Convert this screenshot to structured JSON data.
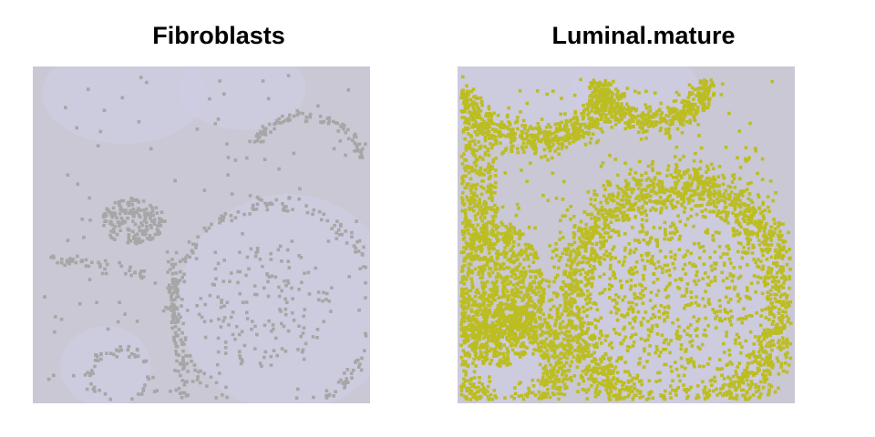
{
  "chart_data": [
    {
      "type": "scatter",
      "title": "Fibroblasts",
      "xlabel": "",
      "ylabel": "",
      "grid": false,
      "legend": "none",
      "background_color": "#c9c8d4",
      "tissue_color": "#d0cee6",
      "point_color": "#a6a6a6",
      "density_description": "sparse; dense band along left-upper duct border, scattered ring around central duct, lower-left band, small lower-left ring",
      "structures": [
        {
          "kind": "arc",
          "cx": 300,
          "cy": 100,
          "rx": 60,
          "ry": 45,
          "start": 200,
          "end": 360,
          "thickness": 10,
          "n": 90
        },
        {
          "kind": "blob",
          "cx": 110,
          "cy": 170,
          "rx": 35,
          "ry": 25,
          "n": 160
        },
        {
          "kind": "ring",
          "cx": 265,
          "cy": 265,
          "rx": 110,
          "ry": 115,
          "thickness": 14,
          "n": 260
        },
        {
          "kind": "fill",
          "cx": 255,
          "cy": 265,
          "rx": 75,
          "ry": 70,
          "n": 140
        },
        {
          "kind": "band",
          "x0": 15,
          "y0": 405,
          "x1": 360,
          "y1": 410,
          "thickness": 8,
          "n": 180
        },
        {
          "kind": "band",
          "x0": 150,
          "y0": 200,
          "x1": 170,
          "y1": 400,
          "thickness": 10,
          "n": 110
        },
        {
          "kind": "ring",
          "cx": 95,
          "cy": 340,
          "rx": 32,
          "ry": 28,
          "thickness": 8,
          "n": 60
        },
        {
          "kind": "band",
          "x0": 20,
          "y0": 210,
          "x1": 130,
          "y1": 230,
          "thickness": 10,
          "n": 45
        },
        {
          "kind": "scatter",
          "x0": 10,
          "y0": 10,
          "x1": 360,
          "y1": 360,
          "n": 120
        }
      ]
    },
    {
      "type": "scatter",
      "title": "Luminal.mature",
      "xlabel": "",
      "ylabel": "",
      "grid": false,
      "legend": "none",
      "background_color": "#c9c8d4",
      "tissue_color": "#d0cee6",
      "point_color": "#bcbd22",
      "density_description": "very dense; thick ring around central duct, dense top-left and top-middle duct caps, dense left duct region, lower-left ring, scattered interior",
      "structures": [
        {
          "kind": "arc",
          "cx": 85,
          "cy": 25,
          "rx": 80,
          "ry": 55,
          "start": 0,
          "end": 180,
          "thickness": 26,
          "n": 650
        },
        {
          "kind": "arc",
          "cx": 215,
          "cy": 15,
          "rx": 60,
          "ry": 45,
          "start": 0,
          "end": 180,
          "thickness": 22,
          "n": 420
        },
        {
          "kind": "ring",
          "cx": 240,
          "cy": 255,
          "rx": 115,
          "ry": 125,
          "thickness": 42,
          "n": 2200
        },
        {
          "kind": "fill",
          "cx": 240,
          "cy": 255,
          "rx": 80,
          "ry": 85,
          "n": 420
        },
        {
          "kind": "blob",
          "cx": 45,
          "cy": 250,
          "rx": 50,
          "ry": 80,
          "n": 1000
        },
        {
          "kind": "ring",
          "cx": 55,
          "cy": 330,
          "rx": 55,
          "ry": 50,
          "thickness": 30,
          "n": 750
        },
        {
          "kind": "blob",
          "cx": 20,
          "cy": 140,
          "rx": 25,
          "ry": 60,
          "n": 280
        },
        {
          "kind": "scatter",
          "x0": 0,
          "y0": 10,
          "x1": 350,
          "y1": 360,
          "n": 300
        }
      ]
    }
  ],
  "colors": {
    "background": "#ffffff",
    "title": "#000000"
  }
}
